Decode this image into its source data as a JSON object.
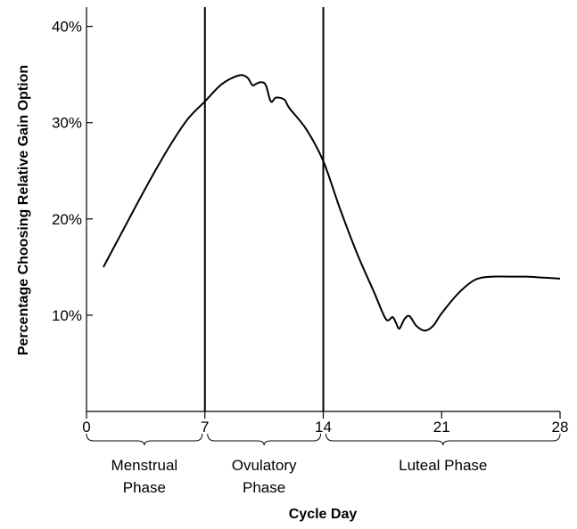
{
  "chart_data": {
    "type": "line",
    "title": "",
    "xlabel": "Cycle Day",
    "ylabel": "Percentage Choosing Relative Gain Option",
    "xlim": [
      0,
      28
    ],
    "ylim": [
      0,
      42
    ],
    "grid": false,
    "x_ticks": [
      0,
      7,
      14,
      21,
      28
    ],
    "x_tick_labels": [
      "0",
      "7",
      "14",
      "21",
      "28"
    ],
    "y_ticks": [
      10,
      20,
      30,
      40
    ],
    "y_tick_labels": [
      "10%",
      "20%",
      "30%",
      "40%"
    ],
    "vertical_lines": [
      7,
      14
    ],
    "phases": [
      {
        "label_line1": "Menstrual",
        "label_line2": "Phase",
        "start": 0,
        "end": 7
      },
      {
        "label_line1": "Ovulatory",
        "label_line2": "Phase",
        "start": 7,
        "end": 14
      },
      {
        "label_line1": "Luteal Phase",
        "label_line2": "",
        "start": 14,
        "end": 28
      }
    ],
    "series": [
      {
        "x": [
          1,
          2,
          3,
          4,
          5,
          6,
          7,
          8,
          9,
          9.5,
          9.8,
          10,
          10.3,
          10.6,
          10.9,
          11.2,
          11.7,
          12,
          13,
          14,
          15,
          16,
          17,
          17.7,
          18.1,
          18.3,
          18.5,
          18.8,
          19.1,
          19.5,
          20,
          20.5,
          21,
          22,
          23,
          24,
          25,
          26,
          27,
          28
        ],
        "y": [
          15,
          18.3,
          21.6,
          24.8,
          27.8,
          30.4,
          32.2,
          34,
          34.9,
          34.7,
          33.9,
          34,
          34.2,
          33.9,
          32.2,
          32.6,
          32.4,
          31.5,
          29.3,
          26,
          21,
          16.4,
          12.4,
          9.6,
          9.8,
          9.2,
          8.6,
          9.6,
          9.9,
          8.9,
          8.4,
          8.9,
          10.2,
          12.3,
          13.7,
          14,
          14,
          14,
          13.9,
          13.8
        ]
      }
    ]
  }
}
